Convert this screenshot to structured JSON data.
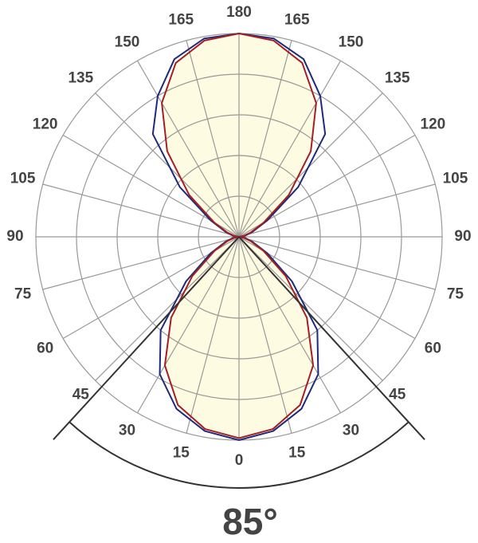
{
  "chart_data": {
    "type": "polar",
    "rlim": [
      0,
      100
    ],
    "grid": true,
    "angle_ticks": [
      0,
      15,
      30,
      45,
      60,
      75,
      90,
      105,
      120,
      135,
      150,
      165,
      180
    ],
    "angles": [
      0,
      10,
      20,
      30,
      40,
      50,
      60,
      70,
      80,
      90,
      100,
      110,
      120,
      130,
      140,
      150,
      160,
      170,
      180
    ],
    "series": [
      {
        "color": "#1f2a7a",
        "values": [
          100,
          97,
          90,
          78,
          60,
          34,
          16,
          7,
          3,
          0,
          3,
          7,
          16,
          38,
          66,
          80,
          93,
          99,
          100
        ]
      },
      {
        "color": "#a31f24",
        "fill": "#fdfbe1",
        "values": [
          99,
          96,
          88,
          73,
          52,
          30,
          14,
          6,
          2,
          0,
          2,
          6,
          14,
          32,
          55,
          76,
          91,
          98,
          100
        ]
      }
    ],
    "beam_angle": {
      "value": 85,
      "label": "85°"
    }
  }
}
